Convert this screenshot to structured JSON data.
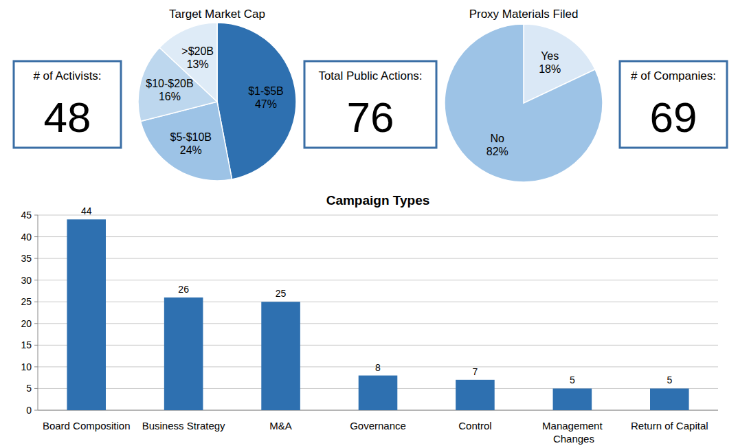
{
  "chart_data": [
    {
      "type": "pie",
      "title": "Target Market Cap",
      "categories": [
        "$1-$5B",
        "$5-$10B",
        "$10-$20B",
        ">$20B"
      ],
      "values": [
        47,
        24,
        16,
        13
      ],
      "value_labels": [
        "47%",
        "24%",
        "16%",
        "13%"
      ],
      "colors": [
        "#2e70b0",
        "#9dc3e6",
        "#bdd7ee",
        "#deebf7"
      ],
      "data_labels": true
    },
    {
      "type": "pie",
      "title": "Proxy Materials Filed",
      "categories": [
        "Yes",
        "No"
      ],
      "values": [
        18,
        82
      ],
      "value_labels": [
        "18%",
        "82%"
      ],
      "colors": [
        "#dae8f6",
        "#9dc3e6"
      ],
      "data_labels": true
    },
    {
      "type": "bar",
      "title": "Campaign Types",
      "categories": [
        "Board Composition",
        "Business Strategy",
        "M&A",
        "Governance",
        "Control",
        "Management Changes",
        "Return of Capital"
      ],
      "values": [
        44,
        26,
        25,
        8,
        7,
        5,
        5
      ],
      "color": "#2e70b0",
      "ylim": [
        0,
        45
      ],
      "yticks": [
        0,
        5,
        10,
        15,
        20,
        25,
        30,
        35,
        40,
        45
      ],
      "grid": true,
      "data_labels": true
    }
  ],
  "stats": [
    {
      "label": "# of Activists:",
      "value": 48
    },
    {
      "label": "Total Public Actions:",
      "value": 76
    },
    {
      "label": "# of Companies:",
      "value": 69
    }
  ]
}
